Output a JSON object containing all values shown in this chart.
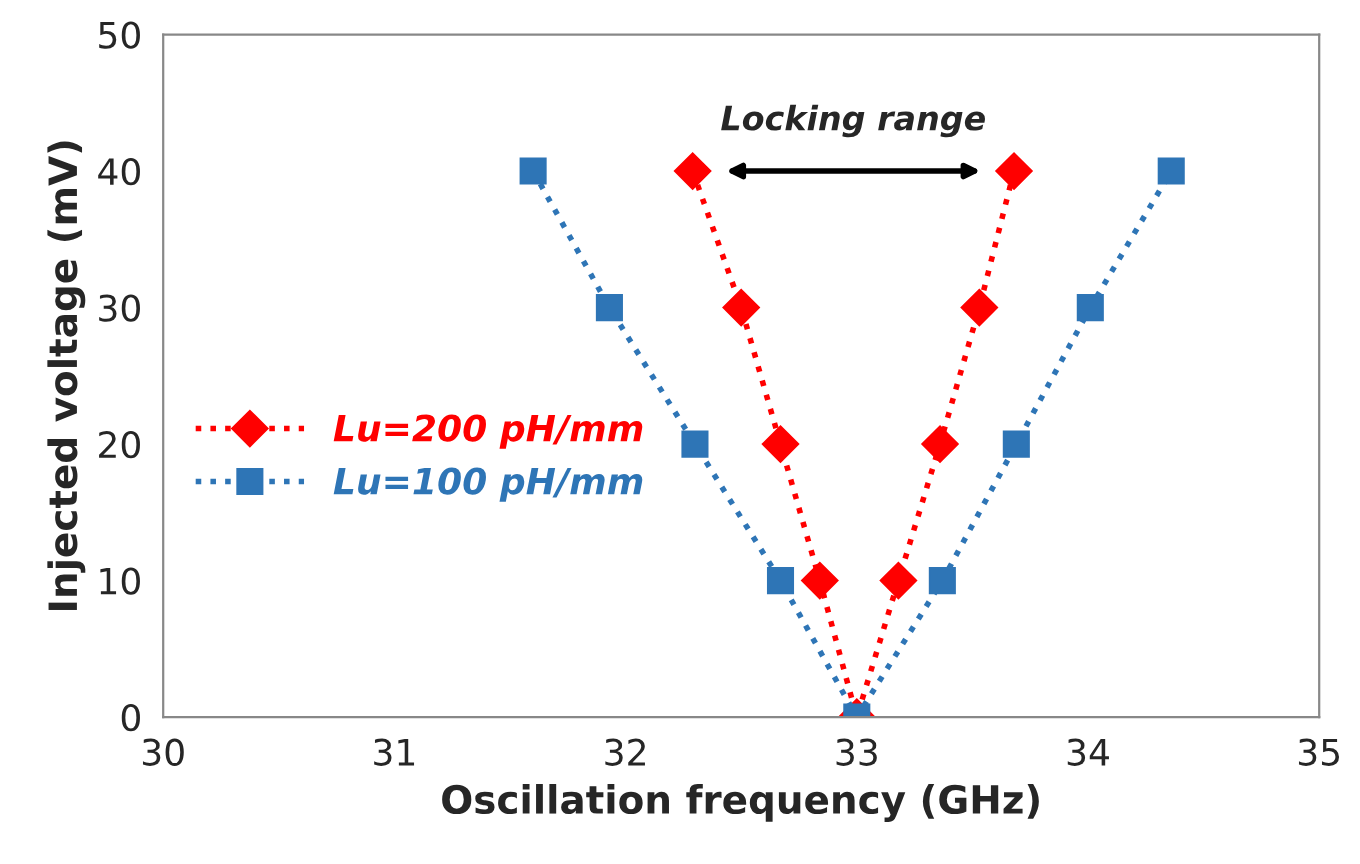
{
  "chart_data": {
    "type": "line",
    "xlabel": "Oscillation frequency (GHz)",
    "ylabel": "Injected voltage (mV)",
    "xlim": [
      30,
      35
    ],
    "xticks": [
      30,
      31,
      32,
      33,
      34,
      35
    ],
    "ylim": [
      0,
      50
    ],
    "yticks": [
      0,
      10,
      20,
      30,
      40,
      50
    ],
    "grid": false,
    "legend": "center left",
    "line_style": "dotted",
    "annotations": [
      "Locking range"
    ],
    "series": [
      {
        "name": "Lu=200 pH/mm",
        "color": "#ff0000",
        "marker": "diamond",
        "x": [
          32.29,
          32.5,
          32.67,
          32.84,
          33.0,
          33.18,
          33.36,
          33.53,
          33.68
        ],
        "values": [
          40,
          30,
          20,
          10,
          0,
          10,
          20,
          30,
          40
        ]
      },
      {
        "name": "Lu=100 pH/mm",
        "color": "#2e75b6",
        "marker": "square",
        "x": [
          31.6,
          31.93,
          32.3,
          32.67,
          33.0,
          33.37,
          33.69,
          34.01,
          34.36
        ],
        "values": [
          40,
          30,
          20,
          10,
          0,
          10,
          20,
          30,
          40
        ]
      }
    ]
  }
}
